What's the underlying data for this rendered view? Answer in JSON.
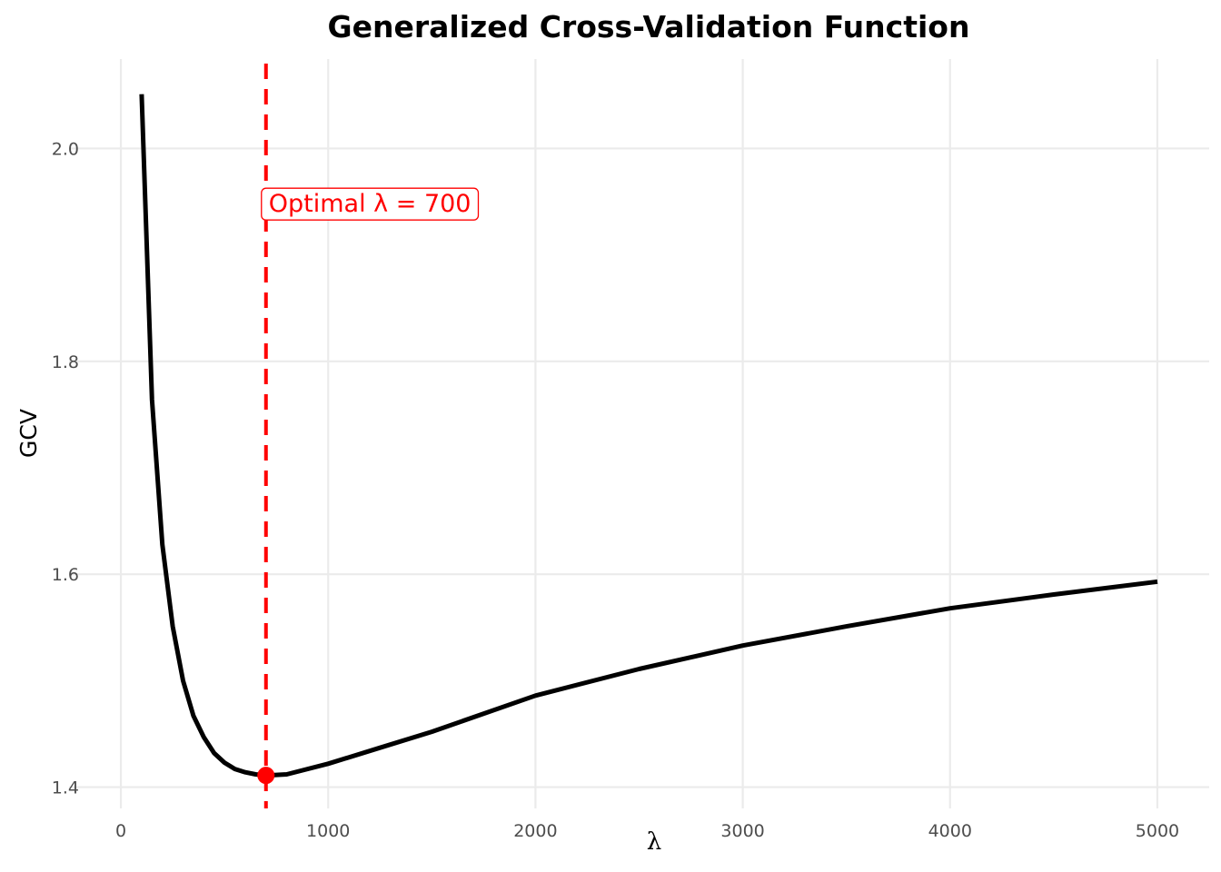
{
  "chart_data": {
    "type": "line",
    "title": "Generalized Cross-Validation Function",
    "xlabel": "λ",
    "ylabel": "GCV",
    "xlim": [
      -250,
      5250
    ],
    "ylim": [
      1.38,
      2.084
    ],
    "xticks": [
      0,
      1000,
      2000,
      3000,
      4000,
      5000
    ],
    "xtick_labels": [
      "0",
      "1000",
      "2000",
      "3000",
      "4000",
      "5000"
    ],
    "yticks": [
      1.4,
      1.6,
      1.8,
      2.0
    ],
    "ytick_labels": [
      "1.4",
      "1.6",
      "1.8",
      "2.0"
    ],
    "grid": true,
    "series": [
      {
        "color": "#000000",
        "x": [
          100,
          150,
          200,
          250,
          300,
          350,
          400,
          450,
          500,
          550,
          600,
          650,
          700,
          800,
          1000,
          1250,
          1500,
          2000,
          2500,
          3000,
          3500,
          4000,
          4500,
          5000
        ],
        "y": [
          2.051,
          1.764,
          1.628,
          1.551,
          1.5,
          1.467,
          1.447,
          1.432,
          1.423,
          1.417,
          1.414,
          1.412,
          1.411,
          1.412,
          1.422,
          1.437,
          1.452,
          1.486,
          1.511,
          1.533,
          1.551,
          1.568,
          1.581,
          1.593
        ]
      }
    ],
    "optimal": {
      "x": 700,
      "y": 1.411,
      "color": "#ff0000",
      "line_style": "dashed"
    },
    "annotation": {
      "text": "Optimal λ = 700",
      "x": 700,
      "y": 1.949,
      "color": "#ff0000"
    }
  }
}
